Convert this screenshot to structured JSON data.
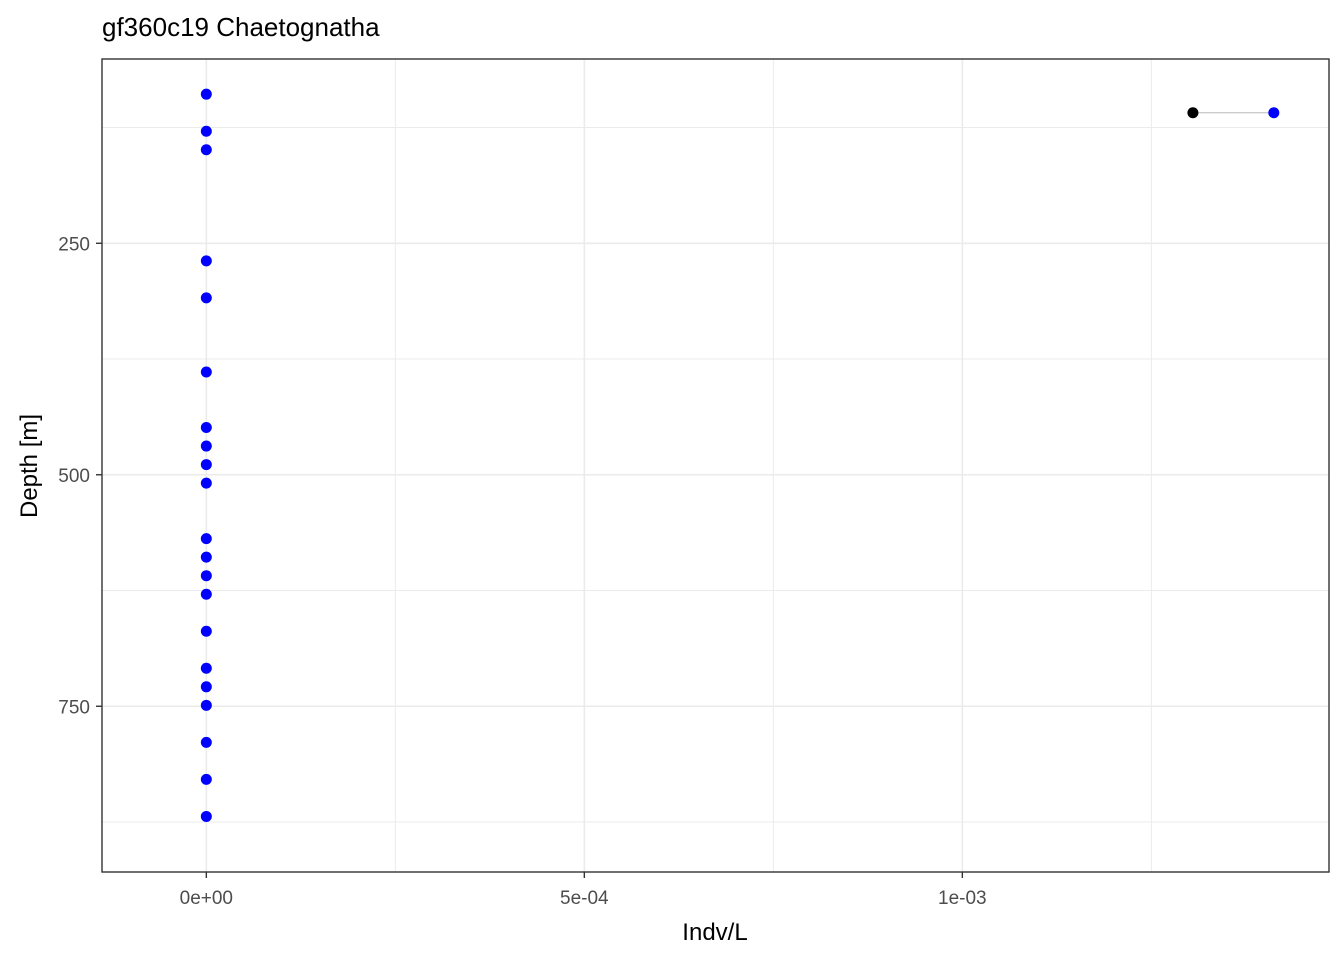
{
  "chart_data": {
    "type": "scatter",
    "title": "gf360c19 Chaetognatha",
    "xlabel": "Indv/L",
    "ylabel": "Depth [m]",
    "x_ticks": [
      {
        "value": 0,
        "label": "0e+00"
      },
      {
        "value": 0.0005,
        "label": "5e-04"
      },
      {
        "value": 0.001,
        "label": "1e-03"
      }
    ],
    "y_ticks": [
      {
        "value": 250,
        "label": "250"
      },
      {
        "value": 500,
        "label": "500"
      },
      {
        "value": 750,
        "label": "750"
      }
    ],
    "xlim": [
      -0.000138,
      0.001485
    ],
    "ylim": [
      929,
      51
    ],
    "y_reversed": true,
    "grid": true,
    "colors": {
      "points": "#0000ff",
      "highlight": "#000000",
      "segment": "#cccccc"
    },
    "series": [
      {
        "color": "#0000ff",
        "points": [
          {
            "x": 0,
            "y": 89
          },
          {
            "x": 0,
            "y": 129
          },
          {
            "x": 0,
            "y": 149
          },
          {
            "x": 0,
            "y": 269
          },
          {
            "x": 0,
            "y": 309
          },
          {
            "x": 0,
            "y": 389
          },
          {
            "x": 0,
            "y": 449
          },
          {
            "x": 0,
            "y": 469
          },
          {
            "x": 0,
            "y": 489
          },
          {
            "x": 0,
            "y": 509
          },
          {
            "x": 0,
            "y": 569
          },
          {
            "x": 0,
            "y": 589
          },
          {
            "x": 0,
            "y": 609
          },
          {
            "x": 0,
            "y": 629
          },
          {
            "x": 0,
            "y": 669
          },
          {
            "x": 0,
            "y": 709
          },
          {
            "x": 0,
            "y": 729
          },
          {
            "x": 0,
            "y": 749
          },
          {
            "x": 0,
            "y": 789
          },
          {
            "x": 0,
            "y": 829
          },
          {
            "x": 0,
            "y": 869
          },
          {
            "x": 0.001412,
            "y": 109
          }
        ]
      },
      {
        "color": "#000000",
        "points": [
          {
            "x": 0.001305,
            "y": 109
          }
        ]
      }
    ],
    "segments": [
      {
        "x1": 0.001305,
        "y1": 109,
        "x2": 0.001412,
        "y2": 109
      }
    ]
  }
}
